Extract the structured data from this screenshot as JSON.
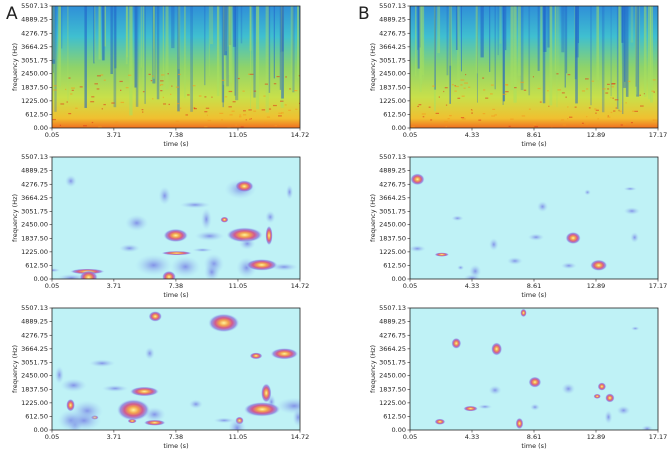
{
  "panel_labels": [
    "A",
    "B"
  ],
  "chart_data": [
    {
      "type": "spectrogram",
      "colormap": "jet",
      "xlabel": "time (s)",
      "ylabel": "frequency (Hz)",
      "xlim": [
        0.05,
        14.72
      ],
      "xticks": [
        0.05,
        3.71,
        7.38,
        11.05,
        14.72
      ],
      "ylim": [
        0,
        5507.13
      ],
      "yticks": [
        {
          "value": 0,
          "label": "0.00"
        },
        {
          "value": 612.5,
          "label": "612.50"
        },
        {
          "value": 1225,
          "label": "1225.00"
        },
        {
          "value": 1837.5,
          "label": "1837.50"
        },
        {
          "value": 2450,
          "label": "2450.00"
        },
        3051.75,
        3664.25,
        4276.75,
        4889.25,
        5507.13
      ]
    },
    {
      "type": "spectrogram",
      "colormap": "jet",
      "xlabel": "time (s)",
      "ylabel": "frequency (Hz)",
      "xlim": [
        0.05,
        17.17
      ],
      "xticks": [
        0.05,
        4.33,
        8.61,
        12.89,
        17.17
      ],
      "ylim": [
        0,
        5507.13
      ],
      "yticks": [
        {
          "value": 0,
          "label": "0.00"
        },
        {
          "value": 612.5,
          "label": "612.50"
        },
        {
          "value": 1225,
          "label": "1225.00"
        },
        {
          "value": 1837.5,
          "label": "1837.50"
        },
        {
          "value": 2450,
          "label": "2450.00"
        },
        3051.75,
        3664.25,
        4276.75,
        4889.25,
        5507.13
      ]
    },
    {
      "type": "spectrogram",
      "colormap": "heat",
      "xlabel": "time (s)",
      "ylabel": "frequency (Hz)",
      "xlim": [
        0.05,
        14.72
      ],
      "xticks": [
        0.05,
        3.71,
        7.38,
        11.05,
        14.72
      ],
      "ylim": [
        0,
        5507.13
      ],
      "yticks": [
        {
          "value": 0,
          "label": "0.00"
        },
        {
          "value": 612.5,
          "label": "612.50"
        },
        {
          "value": 1225,
          "label": "1225.00"
        },
        {
          "value": 1837.5,
          "label": "1837.50"
        },
        {
          "value": 2450,
          "label": "2450.00"
        },
        3051.75,
        3664.25,
        4276.75,
        4889.25,
        5507.13
      ]
    },
    {
      "type": "spectrogram",
      "colormap": "heat",
      "xlabel": "time (s)",
      "ylabel": "frequency (Hz)",
      "xlim": [
        0.05,
        17.17
      ],
      "xticks": [
        0.05,
        4.33,
        8.61,
        12.89,
        17.17
      ],
      "ylim": [
        0,
        5507.13
      ],
      "yticks": [
        {
          "value": 0,
          "label": "0.00"
        },
        {
          "value": 612.5,
          "label": "612.50"
        },
        {
          "value": 1225,
          "label": "1225.00"
        },
        {
          "value": 1837.5,
          "label": "1837.50"
        },
        {
          "value": 2450,
          "label": "2450.00"
        },
        3051.75,
        3664.25,
        4276.75,
        4889.25,
        5507.13
      ]
    },
    {
      "type": "spectrogram",
      "colormap": "heat",
      "xlabel": "time (s)",
      "ylabel": "frequency (Hz)",
      "xlim": [
        0.05,
        14.72
      ],
      "xticks": [
        0.05,
        3.71,
        7.38,
        11.05,
        14.72
      ],
      "ylim": [
        0,
        5507.13
      ],
      "yticks": [
        {
          "value": 0,
          "label": "0.00"
        },
        {
          "value": 612.5,
          "label": "612.50"
        },
        {
          "value": 1225,
          "label": "1225.00"
        },
        {
          "value": 1837.5,
          "label": "1837.50"
        },
        {
          "value": 2450,
          "label": "2450.00"
        },
        3051.75,
        3664.25,
        4276.75,
        4889.25,
        5507.13
      ]
    },
    {
      "type": "spectrogram",
      "colormap": "heat",
      "xlabel": "time (s)",
      "ylabel": "frequency (Hz)",
      "xlim": [
        0.05,
        17.17
      ],
      "xticks": [
        0.05,
        4.33,
        8.61,
        12.89,
        17.17
      ],
      "ylim": [
        0,
        5507.13
      ],
      "yticks": [
        {
          "value": 0,
          "label": "0.00"
        },
        {
          "value": 612.5,
          "label": "612.50"
        },
        {
          "value": 1225,
          "label": "1225.00"
        },
        {
          "value": 1837.5,
          "label": "1837.50"
        },
        {
          "value": 2450,
          "label": "2450.00"
        },
        3051.75,
        3664.25,
        4276.75,
        4889.25,
        5507.13
      ]
    }
  ]
}
